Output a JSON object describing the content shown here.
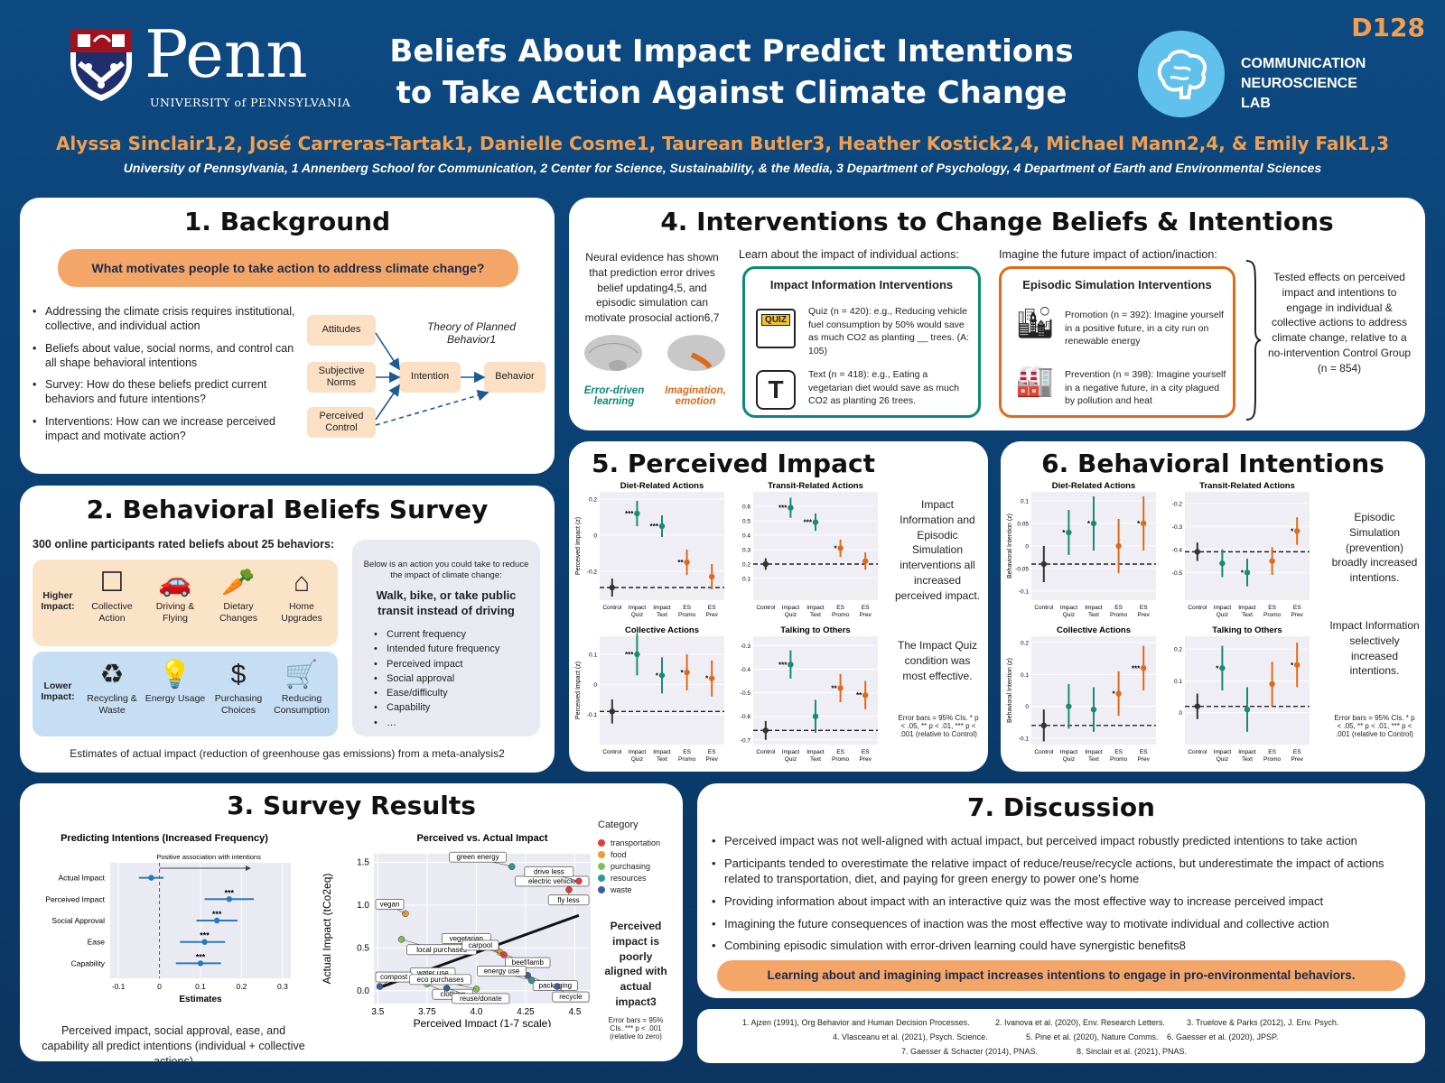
{
  "header": {
    "code": "D128",
    "title_line1": "Beliefs About Impact Predict Intentions",
    "title_line2": "to Take Action Against Climate Change",
    "penn_word": "Penn",
    "penn_sub": "UNIVERSITY of PENNSYLVANIA",
    "lab_line1": "COMMUNICATION",
    "lab_line2": "NEUROSCIENCE",
    "lab_line3": "LAB",
    "authors": "Alyssa Sinclair1,2, José Carreras-Tartak1, Danielle Cosme1, Taurean Butler3, Heather Kostick2,4, Michael Mann2,4, & Emily Falk1,3",
    "affiliations": "University of Pennsylvania, 1 Annenberg School for Communication, 2 Center for Science, Sustainability, & the Media, 3 Department of Psychology, 4 Department of Earth and Environmental Sciences"
  },
  "background": {
    "title": "1. Background",
    "question": "What motivates people to take action to address climate change?",
    "bullets": [
      "Addressing the climate crisis requires institutional, collective, and individual action",
      "Beliefs about value, social norms, and control can all shape behavioral intentions",
      "Survey: How do these beliefs predict current behaviors and future intentions?",
      "Interventions: How can we increase perceived impact and motivate action?"
    ],
    "tpb_title": "Theory of Planned Behavior1",
    "boxes": [
      "Attitudes",
      "Subjective Norms",
      "Perceived Control",
      "Intention",
      "Behavior"
    ]
  },
  "survey": {
    "title": "2. Behavioral Beliefs Survey",
    "intro": "300 online participants rated beliefs about 25 behaviors:",
    "higher_label": "Higher Impact:",
    "lower_label": "Lower Impact:",
    "higher": [
      "Collective Action",
      "Driving & Flying",
      "Dietary Changes",
      "Home Upgrades"
    ],
    "lower": [
      "Recycling & Waste",
      "Energy Usage",
      "Purchasing Choices",
      "Reducing Consumption"
    ],
    "card_intro": "Below is an action you could take to reduce the impact of climate change:",
    "card_action": "Walk, bike, or take public transit instead of driving",
    "card_items": [
      "Current frequency",
      "Intended future frequency",
      "Perceived impact",
      "Social approval",
      "Ease/difficulty",
      "Capability",
      "…"
    ],
    "footnote": "Estimates of actual impact (reduction of greenhouse gas emissions) from a meta-analysis2"
  },
  "results": {
    "title": "3. Survey Results",
    "forest_title": "Predicting Intentions (Increased Frequency)",
    "forest_note": "Positive association with intentions",
    "forest_xlabel": "Estimates",
    "scatter_title": "Perceived vs. Actual Impact",
    "scatter_xlabel": "Perceived Impact (1-7 scale)",
    "scatter_ylabel": "Actual Impact (tCo2eq)",
    "legend_title": "Category",
    "side_note": "Perceived impact is poorly aligned with actual impact3",
    "side_err": "Error bars = 95% CIs. *** p < .001 (relative to zero)",
    "caption": "Perceived impact, social approval, ease, and capability all predict intentions (individual + collective actions)"
  },
  "interventions": {
    "title": "4. Interventions to Change Beliefs & Intentions",
    "neural_text": "Neural evidence has shown that prediction error drives belief updating4,5, and episodic simulation can motivate prosocial action6,7",
    "brain1": "Error-driven learning",
    "brain2": "Imagination, emotion",
    "learn_head": "Learn about the impact of individual actions:",
    "imagine_head": "Imagine the future impact of action/inaction:",
    "impact_box_title": "Impact Information Interventions",
    "quiz_text": "Quiz (n = 420): e.g., Reducing vehicle fuel consumption by 50% would save as much CO2 as planting __ trees. (A: 105)",
    "text_text": "Text (n = 418): e.g., Eating a vegetarian diet would save as much CO2 as planting 26 trees.",
    "episodic_box_title": "Episodic Simulation Interventions",
    "promo_text": "Promotion (n = 392): Imagine yourself in a positive future, in a city run on renewable energy",
    "prev_text": "Prevention (n = 398): Imagine yourself in a negative future, in a city plagued by pollution and heat",
    "tested": "Tested effects on perceived impact and intentions to engage in individual & collective actions to address climate change, relative to a no-intervention Control Group (n = 854)",
    "quiz_badge": "QUIZ"
  },
  "perceived": {
    "title": "5. Perceived Impact",
    "note1": "Impact Information and Episodic Simulation interventions all increased perceived impact.",
    "note2": "The Impact Quiz condition was most effective.",
    "err": "Error bars = 95% CIs. * p < .05, ** p < .01, *** p < .001 (relative to Control)"
  },
  "behavioral": {
    "title": "6. Behavioral Intentions",
    "note1": "Episodic Simulation (prevention) broadly increased intentions.",
    "note2": "Impact Information selectively increased intentions.",
    "err": "Error bars = 95% CIs. * p < .05, ** p < .01, *** p < .001 (relative to Control)"
  },
  "discussion": {
    "title": "7. Discussion",
    "bullets": [
      "Perceived impact was not well-aligned with actual impact, but perceived impact robustly predicted intentions to take action",
      "Participants tended to overestimate the relative impact of reduce/reuse/recycle actions, but underestimate the impact of actions related to transportation, diet, and paying for green energy to power one's home",
      "Providing information about impact with an interactive quiz was the most effective way to increase perceived impact",
      "Imagining the future consequences of inaction was the most effective way to motivate individual and collective action",
      "Combining episodic simulation with error-driven learning could have synergistic benefits8"
    ],
    "takeaway": "Learning about and imagining impact increases intentions to engage in pro-environmental behaviors."
  },
  "references": [
    "1. Ajzen (1991), Org Behavior and Human Decision Processes.",
    "2. Ivanova et al. (2020), Env. Research Letters.",
    "3. Truelove & Parks (2012), J. Env. Psych.",
    "4. Vlasceanu et al. (2021), Psych. Science.",
    "5. Pine et al. (2020), Nature Comms.",
    "6. Gaesser et al. (2020), JPSP.",
    "7. Gaesser & Schacter (2014), PNAS.",
    "8. Sinclair et al. (2021), PNAS."
  ],
  "chart_data": [
    {
      "type": "scatter",
      "title": "Predicting Intentions (Increased Frequency)",
      "xlabel": "Estimates",
      "categories": [
        "Actual Impact",
        "Perceived Impact",
        "Social Approval",
        "Ease",
        "Capability"
      ],
      "values": [
        -0.02,
        0.17,
        0.14,
        0.11,
        0.1
      ],
      "ci_low": [
        -0.05,
        0.11,
        0.09,
        0.05,
        0.04
      ],
      "ci_high": [
        0.01,
        0.23,
        0.19,
        0.16,
        0.15
      ],
      "sig": [
        "",
        "***",
        "***",
        "***",
        "***"
      ],
      "xlim": [
        -0.12,
        0.32
      ],
      "xticks": [
        -0.1,
        0.0,
        0.1,
        0.2,
        0.3
      ]
    },
    {
      "type": "scatter",
      "title": "Perceived vs. Actual Impact",
      "xlabel": "Perceived Impact (1-7 scale)",
      "ylabel": "Actual Impact (tCo2eq)",
      "xlim": [
        3.48,
        4.58
      ],
      "ylim": [
        -0.15,
        1.6
      ],
      "xticks": [
        3.5,
        3.75,
        4.0,
        4.25,
        4.5
      ],
      "yticks": [
        0.0,
        0.5,
        1.0,
        1.5
      ],
      "legend": [
        {
          "name": "transportation",
          "color": "#e53b3b"
        },
        {
          "name": "food",
          "color": "#f39c2a"
        },
        {
          "name": "purchasing",
          "color": "#7fc35a"
        },
        {
          "name": "resources",
          "color": "#2e9b8f"
        },
        {
          "name": "waste",
          "color": "#3d5d9a"
        }
      ],
      "points": [
        {
          "label": "green energy",
          "x": 4.18,
          "y": 1.45,
          "cat": "resources"
        },
        {
          "label": "electric vehicle",
          "x": 4.42,
          "y": 1.4,
          "cat": "transportation"
        },
        {
          "label": "drive less",
          "x": 4.52,
          "y": 1.28,
          "cat": "transportation"
        },
        {
          "label": "fly less",
          "x": 4.47,
          "y": 1.18,
          "cat": "transportation"
        },
        {
          "label": "vegan",
          "x": 3.64,
          "y": 0.9,
          "cat": "food"
        },
        {
          "label": "local purchases",
          "x": 3.62,
          "y": 0.6,
          "cat": "purchasing"
        },
        {
          "label": "vegetarian",
          "x": 4.1,
          "y": 0.5,
          "cat": "food"
        },
        {
          "label": "beef/lamb",
          "x": 4.12,
          "y": 0.45,
          "cat": "food"
        },
        {
          "label": "carpool",
          "x": 4.14,
          "y": 0.42,
          "cat": "transportation"
        },
        {
          "label": "clothing",
          "x": 3.75,
          "y": 0.08,
          "cat": "purchasing"
        },
        {
          "label": "water use",
          "x": 3.92,
          "y": 0.1,
          "cat": "resources"
        },
        {
          "label": "packaging",
          "x": 4.26,
          "y": 0.18,
          "cat": "waste"
        },
        {
          "label": "compost",
          "x": 3.51,
          "y": 0.05,
          "cat": "waste"
        },
        {
          "label": "reuse/donate",
          "x": 3.85,
          "y": 0.03,
          "cat": "waste"
        },
        {
          "label": "energy use",
          "x": 4.28,
          "y": 0.12,
          "cat": "resources"
        },
        {
          "label": "recycle",
          "x": 4.41,
          "y": 0.05,
          "cat": "waste"
        },
        {
          "label": "eco purchases",
          "x": 4.0,
          "y": 0.02,
          "cat": "purchasing"
        }
      ],
      "trend": {
        "x0": 3.5,
        "y0": 0.03,
        "x1": 4.52,
        "y1": 0.88
      }
    },
    {
      "type": "scatter",
      "title": "Perceived Impact",
      "categories": [
        "Control",
        "Impact Quiz",
        "Impact Text",
        "ES Promo",
        "ES Prev"
      ],
      "panels": [
        {
          "name": "Diet-Related Actions",
          "ylabel": "Perceived Impact (z)",
          "ylim": [
            -0.36,
            0.24
          ],
          "yticks": [
            0.2,
            0.0,
            -0.2
          ],
          "values": [
            -0.29,
            0.12,
            0.05,
            -0.15,
            -0.23
          ],
          "err": [
            0.05,
            0.07,
            0.06,
            0.07,
            0.07
          ],
          "sig": [
            "",
            "***",
            "***",
            "**",
            ""
          ]
        },
        {
          "name": "Transit-Related Actions",
          "ylabel": "",
          "ylim": [
            -0.05,
            0.7
          ],
          "yticks": [
            0.6,
            0.5,
            0.4,
            0.3,
            0.2,
            0.1
          ],
          "values": [
            0.2,
            0.59,
            0.49,
            0.31,
            0.22
          ],
          "err": [
            0.04,
            0.07,
            0.06,
            0.06,
            0.06
          ],
          "sig": [
            "",
            "***",
            "***",
            "*",
            ""
          ]
        },
        {
          "name": "Collective Actions",
          "ylabel": "Perceived Impact (z)",
          "ylim": [
            -0.2,
            0.16
          ],
          "yticks": [
            0.1,
            0.0,
            -0.1
          ],
          "values": [
            -0.09,
            0.1,
            0.03,
            0.04,
            0.02
          ],
          "err": [
            0.04,
            0.07,
            0.06,
            0.06,
            0.06
          ],
          "sig": [
            "",
            "***",
            "*",
            "*",
            "*"
          ]
        },
        {
          "name": "Talking to Others",
          "ylabel": "",
          "ylim": [
            -0.72,
            -0.26
          ],
          "yticks": [
            -0.3,
            -0.4,
            -0.5,
            -0.6,
            -0.7
          ],
          "values": [
            -0.66,
            -0.38,
            -0.6,
            -0.48,
            -0.51
          ],
          "err": [
            0.04,
            0.06,
            0.07,
            0.06,
            0.06
          ],
          "sig": [
            "",
            "***",
            "",
            "**",
            "**"
          ]
        }
      ]
    },
    {
      "type": "scatter",
      "title": "Behavioral Intentions",
      "categories": [
        "Control",
        "Impact Quiz",
        "Impact Text",
        "ES Promo",
        "ES Prev"
      ],
      "panels": [
        {
          "name": "Diet-Related Actions",
          "ylabel": "Behavioral Intention (z)",
          "ylim": [
            -0.12,
            0.12
          ],
          "yticks": [
            0.1,
            0.05,
            0.0,
            -0.05,
            -0.1
          ],
          "values": [
            -0.04,
            0.03,
            0.05,
            0.0,
            0.05
          ],
          "err": [
            0.04,
            0.05,
            0.06,
            0.06,
            0.06
          ],
          "sig": [
            "",
            "*",
            "*",
            "",
            "*"
          ]
        },
        {
          "name": "Transit-Related Actions",
          "ylabel": "",
          "ylim": [
            -0.62,
            -0.15
          ],
          "yticks": [
            -0.2,
            -0.3,
            -0.4,
            -0.5
          ],
          "values": [
            -0.41,
            -0.46,
            -0.5,
            -0.45,
            -0.32
          ],
          "err": [
            0.04,
            0.06,
            0.06,
            0.06,
            0.06
          ],
          "sig": [
            "",
            "",
            "*",
            "",
            "*"
          ]
        },
        {
          "name": "Collective Actions",
          "ylabel": "Behavioral Intention (z)",
          "ylim": [
            -0.12,
            0.22
          ],
          "yticks": [
            0.2,
            0.1,
            0.0,
            -0.1
          ],
          "values": [
            -0.06,
            0.0,
            -0.01,
            0.04,
            0.12
          ],
          "err": [
            0.05,
            0.07,
            0.07,
            0.07,
            0.07
          ],
          "sig": [
            "",
            "",
            "",
            "*",
            "***"
          ]
        },
        {
          "name": "Talking to Others",
          "ylabel": "",
          "ylim": [
            -0.1,
            0.24
          ],
          "yticks": [
            0.2,
            0.1,
            0.0
          ],
          "values": [
            0.02,
            0.14,
            0.01,
            0.09,
            0.15
          ],
          "err": [
            0.04,
            0.07,
            0.07,
            0.07,
            0.07
          ],
          "sig": [
            "",
            "*",
            "",
            "",
            "*"
          ]
        }
      ]
    }
  ]
}
